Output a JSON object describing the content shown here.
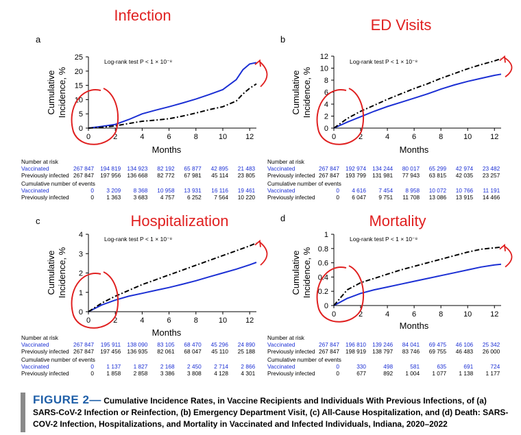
{
  "figure": {
    "caption_lead": "FIGURE 2—",
    "caption_text": " Cumulative Incidence Rates, in Vaccine Recipients and Individuals With Previous Infections, of (a) SARS-CoV-2 Infection or Reinfection, (b) Emergency Department Visit, (c) All-Cause Hospitalization, and (d) Death: SARS-COV-2 Infection, Hospitalizations, and Mortality in Vaccinated and Infected Individuals, Indiana, 2020–2022"
  },
  "colors": {
    "vaccinated": "#1b2fd4",
    "previously_infected": "#000000",
    "annotation": "#e02020"
  },
  "chart_data": [
    {
      "type": "line",
      "panel": "a",
      "annotation_title": "Infection",
      "ylabel": "Cumulative Incidence, %",
      "xlabel": "Months",
      "xlim": [
        0,
        12.5
      ],
      "ylim": [
        0,
        25
      ],
      "xticks": [
        0,
        2,
        4,
        6,
        8,
        10,
        12
      ],
      "yticks": [
        0,
        5,
        10,
        15,
        20,
        25
      ],
      "test_label": "Log-rank test P < 1 × 10⁻⁸",
      "series": [
        {
          "name": "Vaccinated",
          "style": "solid",
          "x": [
            0,
            1,
            2,
            3,
            4,
            5,
            6,
            7,
            8,
            9,
            10,
            11,
            11.5,
            12,
            12.5
          ],
          "y": [
            0,
            0.6,
            1.3,
            3.0,
            5.0,
            6.3,
            7.5,
            8.8,
            10.2,
            11.8,
            13.5,
            17.0,
            20.5,
            22.5,
            23.0
          ]
        },
        {
          "name": "Previously infected",
          "style": "dashdot",
          "x": [
            0,
            1,
            2,
            3,
            4,
            5,
            6,
            7,
            8,
            9,
            10,
            11,
            11.5,
            12,
            12.5
          ],
          "y": [
            0,
            0.3,
            0.8,
            1.6,
            2.4,
            2.8,
            3.3,
            4.2,
            5.3,
            6.5,
            7.5,
            9.5,
            12.0,
            14.0,
            15.5
          ]
        }
      ],
      "risk_table": {
        "number_at_risk_label": "Number at risk",
        "events_label": "Cumulative number of events",
        "vaccinated_label": "Vaccinated",
        "previously_infected_label": "Previously infected",
        "at_risk_vaccinated": [
          "267 847",
          "194 819",
          "134 923",
          "82 192",
          "65 877",
          "42 895",
          "21 483"
        ],
        "at_risk_previously_infected": [
          "267 847",
          "197 956",
          "136 668",
          "82 772",
          "67 981",
          "45 114",
          "23 805"
        ],
        "events_vaccinated": [
          "0",
          "3 209",
          "8 368",
          "10 958",
          "13 931",
          "16 116",
          "19 461"
        ],
        "events_previously_infected": [
          "0",
          "1 363",
          "3 683",
          "4 757",
          "6 252",
          "7 564",
          "10 220"
        ]
      }
    },
    {
      "type": "line",
      "panel": "b",
      "annotation_title": "ED Visits",
      "ylabel": "Cumulative Incidence, %",
      "xlabel": "Months",
      "xlim": [
        0,
        12.5
      ],
      "ylim": [
        0,
        12
      ],
      "xticks": [
        0,
        2,
        4,
        6,
        8,
        10,
        12
      ],
      "yticks": [
        0,
        2,
        4,
        6,
        8,
        10,
        12
      ],
      "test_label": "Log-rank test P < 1 × 10⁻⁸",
      "series": [
        {
          "name": "Vaccinated",
          "style": "solid",
          "x": [
            0,
            1,
            2,
            3,
            4,
            5,
            6,
            7,
            8,
            9,
            10,
            11,
            12,
            12.5
          ],
          "y": [
            0,
            1.0,
            1.9,
            2.8,
            3.6,
            4.3,
            5.0,
            5.7,
            6.5,
            7.2,
            7.8,
            8.3,
            8.8,
            9.0
          ]
        },
        {
          "name": "Previously infected",
          "style": "dashdot",
          "x": [
            0,
            1,
            2,
            3,
            4,
            5,
            6,
            7,
            8,
            9,
            10,
            11,
            12,
            12.5
          ],
          "y": [
            0,
            1.6,
            2.8,
            3.8,
            4.8,
            5.7,
            6.6,
            7.4,
            8.3,
            9.1,
            9.9,
            10.6,
            11.2,
            11.6
          ]
        }
      ],
      "risk_table": {
        "number_at_risk_label": "Number at risk",
        "events_label": "Cumulative number of events",
        "vaccinated_label": "Vaccinated",
        "previously_infected_label": "Previously infected",
        "at_risk_vaccinated": [
          "267 847",
          "192 974",
          "134 244",
          "80 017",
          "65 299",
          "42 974",
          "23 482"
        ],
        "at_risk_previously_infected": [
          "267 847",
          "193 799",
          "131 981",
          "77 943",
          "63 815",
          "42 035",
          "23 257"
        ],
        "events_vaccinated": [
          "0",
          "4 616",
          "7 454",
          "8 958",
          "10 072",
          "10 766",
          "11 191"
        ],
        "events_previously_infected": [
          "0",
          "6 047",
          "9 751",
          "11 708",
          "13 086",
          "13 915",
          "14 466"
        ]
      }
    },
    {
      "type": "line",
      "panel": "c",
      "annotation_title": "Hospitalization",
      "ylabel": "Cumulative Incidence, %",
      "xlabel": "Months",
      "xlim": [
        0,
        12.5
      ],
      "ylim": [
        0,
        4
      ],
      "xticks": [
        0,
        2,
        4,
        6,
        8,
        10,
        12
      ],
      "yticks": [
        0,
        1,
        2,
        3,
        4
      ],
      "test_label": "Log-rank test P < 1 × 10⁻⁸",
      "series": [
        {
          "name": "Vaccinated",
          "style": "solid",
          "x": [
            0,
            1,
            2,
            3,
            4,
            5,
            6,
            7,
            8,
            9,
            10,
            11,
            12,
            12.5
          ],
          "y": [
            0,
            0.35,
            0.6,
            0.8,
            0.95,
            1.1,
            1.25,
            1.42,
            1.6,
            1.8,
            2.0,
            2.2,
            2.42,
            2.55
          ]
        },
        {
          "name": "Previously infected",
          "style": "dashdot",
          "x": [
            0,
            1,
            2,
            3,
            4,
            5,
            6,
            7,
            8,
            9,
            10,
            11,
            12,
            12.5
          ],
          "y": [
            0,
            0.45,
            0.8,
            1.1,
            1.4,
            1.65,
            1.9,
            2.15,
            2.4,
            2.65,
            2.9,
            3.15,
            3.4,
            3.55
          ]
        }
      ],
      "risk_table": {
        "number_at_risk_label": "Number at risk",
        "events_label": "Cumulative number of events",
        "vaccinated_label": "Vaccinated",
        "previously_infected_label": "Previously infected",
        "at_risk_vaccinated": [
          "267 847",
          "195 911",
          "138 090",
          "83 105",
          "68 470",
          "45 296",
          "24 890"
        ],
        "at_risk_previously_infected": [
          "267 847",
          "197 456",
          "136 935",
          "82 061",
          "68 047",
          "45 110",
          "25 188"
        ],
        "events_vaccinated": [
          "0",
          "1 137",
          "1 827",
          "2 168",
          "2 450",
          "2 714",
          "2 866"
        ],
        "events_previously_infected": [
          "0",
          "1 858",
          "2 858",
          "3 386",
          "3 808",
          "4 128",
          "4 301"
        ]
      }
    },
    {
      "type": "line",
      "panel": "d",
      "annotation_title": "Mortality",
      "ylabel": "Cumulative Incidence, %",
      "xlabel": "Months",
      "xlim": [
        0,
        12.5
      ],
      "ylim": [
        0,
        1
      ],
      "xticks": [
        0,
        2,
        4,
        6,
        8,
        10,
        12
      ],
      "yticks": [
        0,
        0.2,
        0.4,
        0.6,
        0.8,
        1
      ],
      "test_label": "Log-rank test P < 1 × 10⁻⁸",
      "series": [
        {
          "name": "Vaccinated",
          "style": "solid",
          "x": [
            0,
            1,
            2,
            3,
            4,
            5,
            6,
            7,
            8,
            9,
            10,
            11,
            12,
            12.5
          ],
          "y": [
            0,
            0.1,
            0.17,
            0.22,
            0.26,
            0.3,
            0.34,
            0.38,
            0.42,
            0.46,
            0.5,
            0.54,
            0.57,
            0.58
          ]
        },
        {
          "name": "Previously infected",
          "style": "dashdot",
          "x": [
            0,
            1,
            2,
            3,
            4,
            5,
            6,
            7,
            8,
            9,
            10,
            11,
            12,
            12.5
          ],
          "y": [
            0,
            0.22,
            0.32,
            0.38,
            0.44,
            0.5,
            0.55,
            0.6,
            0.65,
            0.7,
            0.75,
            0.79,
            0.81,
            0.82
          ]
        }
      ],
      "risk_table": {
        "number_at_risk_label": "Number at risk",
        "events_label": "Cumulative number of events",
        "vaccinated_label": "Vaccinated",
        "previously_infected_label": "Previously infected",
        "at_risk_vaccinated": [
          "267 847",
          "196 810",
          "139 246",
          "84 041",
          "69 475",
          "46 106",
          "25 342"
        ],
        "at_risk_previously_infected": [
          "267 847",
          "198 919",
          "138 797",
          "83 746",
          "69 755",
          "46 483",
          "26 000"
        ],
        "events_vaccinated": [
          "0",
          "330",
          "498",
          "581",
          "635",
          "691",
          "724"
        ],
        "events_previously_infected": [
          "0",
          "677",
          "892",
          "1 004",
          "1 077",
          "1 138",
          "1 177"
        ]
      }
    }
  ]
}
